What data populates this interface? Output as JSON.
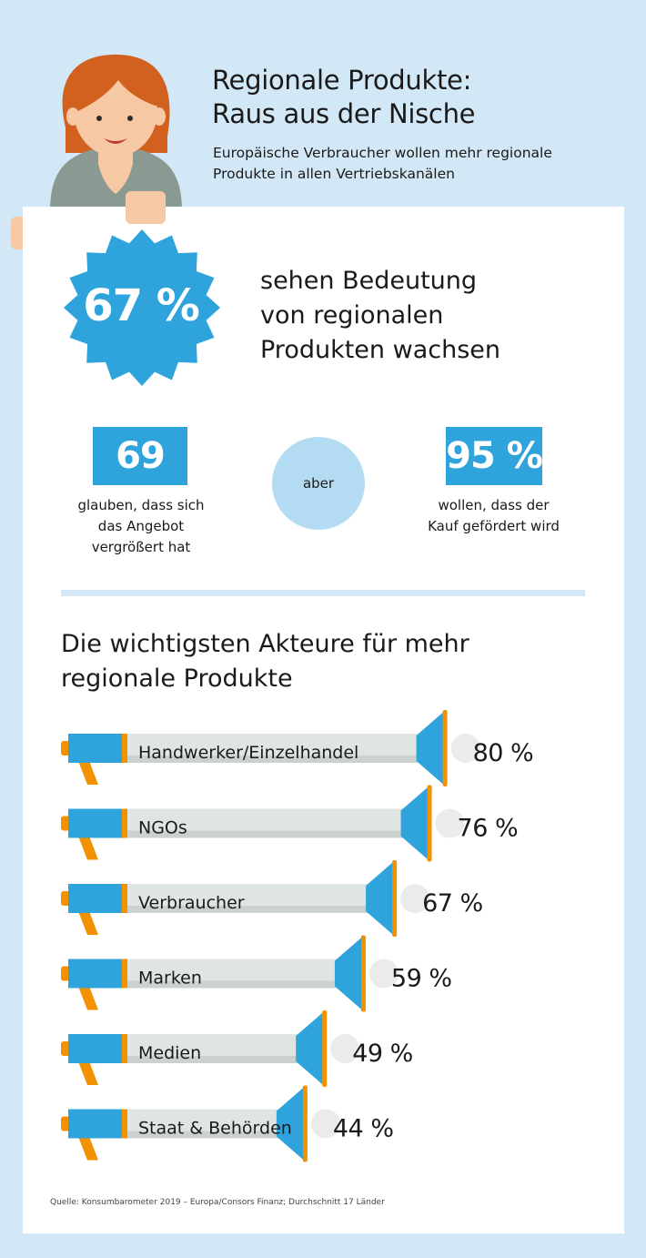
{
  "header": {
    "title_line1": "Regionale Produkte:",
    "title_line2": "Raus aus der Nische",
    "subtitle_line1": "Europäische Verbraucher wollen mehr regionale",
    "subtitle_line2": "Produkte in allen Vertriebskanälen"
  },
  "badge": {
    "value": "67 %"
  },
  "headline": {
    "line1": "sehen Bedeutung",
    "line2": "von regionalen",
    "line3": "Produkten wachsen"
  },
  "stats": {
    "left": {
      "value": "69 %",
      "line1": "glauben, dass sich",
      "line2": "das Angebot",
      "line3": "vergrößert hat"
    },
    "connector": "aber",
    "right": {
      "value": "95 %",
      "line1": "wollen, dass der",
      "line2": "Kauf gefördert wird"
    }
  },
  "section": {
    "title_line1": "Die wichtigsten Akteure für mehr",
    "title_line2": "regionale Produkte"
  },
  "chart_data": {
    "type": "bar",
    "orientation": "horizontal",
    "categories": [
      "Handwerker/Einzelhandel",
      "NGOs",
      "Verbraucher",
      "Marken",
      "Medien",
      "Staat & Behörden"
    ],
    "values": [
      80,
      76,
      67,
      59,
      49,
      44
    ],
    "value_labels": [
      "80 %",
      "76 %",
      "67 %",
      "59 %",
      "49 %",
      "44 %"
    ],
    "unit": "%",
    "colors": {
      "bar": "#dde3df",
      "bar_shadow": "#c9d0cb",
      "accent": "#2fa4dc",
      "orange": "#f39200"
    }
  },
  "source": "Quelle: Konsumbarometer 2019 – Europa/Consors Finanz; Durchschnitt 17 Länder",
  "colors": {
    "background": "#d3e8f6",
    "primary": "#2fa4dc",
    "light_blue": "#b3dcf2",
    "hair": "#d2611f",
    "skin": "#f6c9a4",
    "shirt": "#8a9991"
  }
}
